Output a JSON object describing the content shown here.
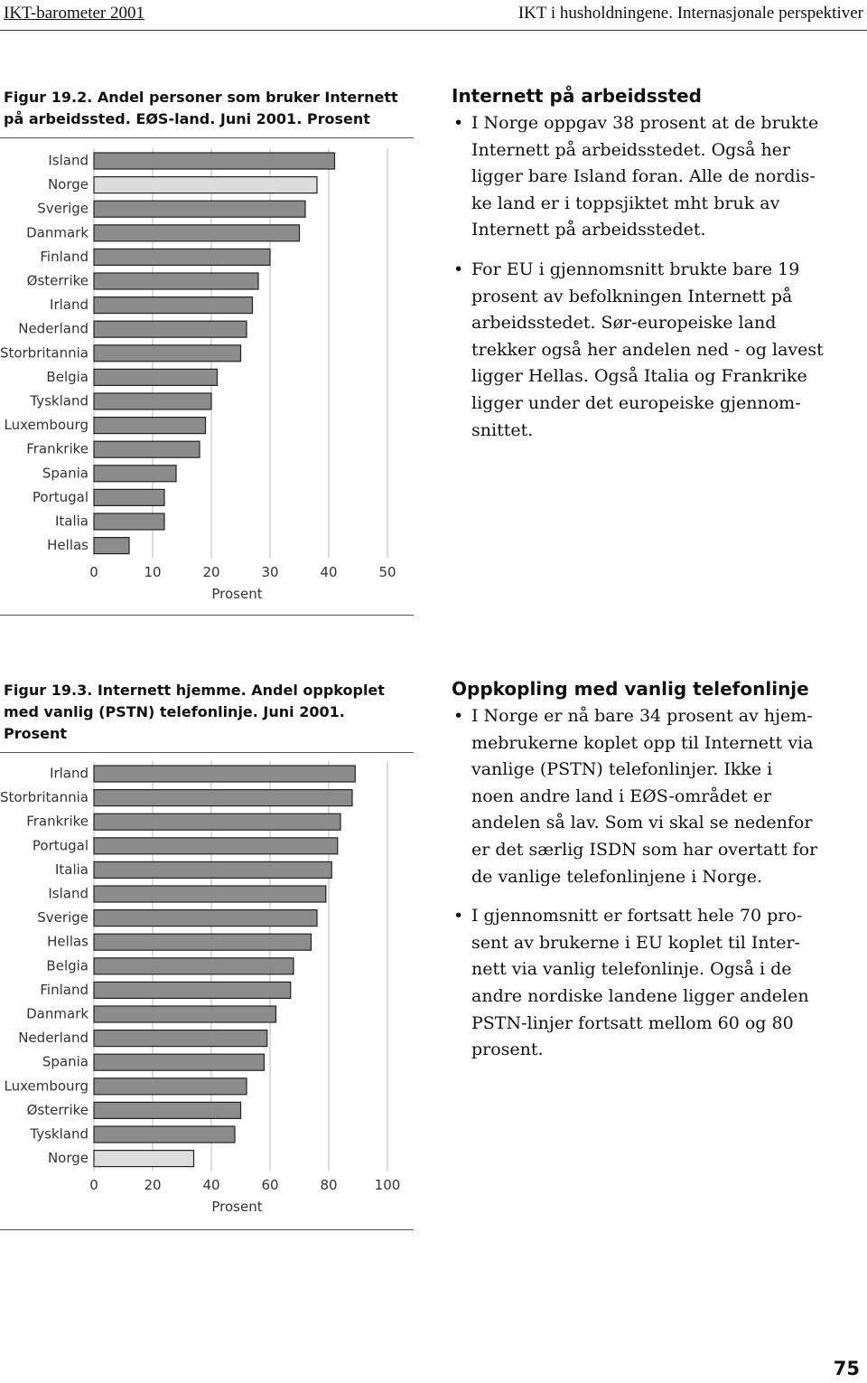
{
  "header": {
    "left": "IKT-barometer 2001",
    "right": "IKT i husholdningene. Internasjonale perspektiver"
  },
  "chart_data": [
    {
      "type": "bar",
      "title": "Figur 19.2. Andel personer som bruker Internett på arbeidssted. EØS-land. Juni 2001. Prosent",
      "categories": [
        "Island",
        "Norge",
        "Sverige",
        "Danmark",
        "Finland",
        "Østerrike",
        "Irland",
        "Nederland",
        "Storbritannia",
        "Belgia",
        "Tyskland",
        "Luxembourg",
        "Frankrike",
        "Spania",
        "Portugal",
        "Italia",
        "Hellas"
      ],
      "values": [
        41,
        38,
        36,
        35,
        30,
        28,
        27,
        26,
        25,
        21,
        20,
        19,
        18,
        14,
        12,
        12,
        6
      ],
      "colors": [
        "#8c8c8c",
        "#dcdcdc",
        "#8c8c8c",
        "#8c8c8c",
        "#8c8c8c",
        "#8c8c8c",
        "#8c8c8c",
        "#8c8c8c",
        "#8c8c8c",
        "#8c8c8c",
        "#8c8c8c",
        "#8c8c8c",
        "#8c8c8c",
        "#8c8c8c",
        "#8c8c8c",
        "#8c8c8c",
        "#8c8c8c"
      ],
      "x_label": "Prosent",
      "xlim": [
        0,
        50
      ],
      "xticks": [
        0,
        10,
        20,
        30,
        40,
        50
      ],
      "grid": true
    },
    {
      "type": "bar",
      "title": "Figur 19.3. Internett hjemme. Andel oppkoplet med vanlig (PSTN) telefonlinje. Juni 2001. Prosent",
      "categories": [
        "Irland",
        "Storbritannia",
        "Frankrike",
        "Portugal",
        "Italia",
        "Island",
        "Sverige",
        "Hellas",
        "Belgia",
        "Finland",
        "Danmark",
        "Nederland",
        "Spania",
        "Luxembourg",
        "Østerrike",
        "Tyskland",
        "Norge"
      ],
      "values": [
        89,
        88,
        84,
        83,
        81,
        79,
        76,
        74,
        68,
        67,
        62,
        59,
        58,
        52,
        50,
        48,
        34
      ],
      "colors": [
        "#8c8c8c",
        "#8c8c8c",
        "#8c8c8c",
        "#8c8c8c",
        "#8c8c8c",
        "#8c8c8c",
        "#8c8c8c",
        "#8c8c8c",
        "#8c8c8c",
        "#8c8c8c",
        "#8c8c8c",
        "#8c8c8c",
        "#8c8c8c",
        "#8c8c8c",
        "#8c8c8c",
        "#8c8c8c",
        "#dcdcdc"
      ],
      "x_label": "Prosent",
      "xlim": [
        0,
        100
      ],
      "xticks": [
        0,
        20,
        40,
        60,
        80,
        100
      ],
      "grid": true
    }
  ],
  "sections": [
    {
      "heading": "Internett på arbeidssted",
      "bullets": [
        [
          "I Norge oppgav 38 prosent at de brukte",
          "Internett på arbeidsstedet. Også her",
          "ligger bare Island foran. Alle de nordis-",
          "ke land er i toppsjiktet mht bruk av",
          "Internett på arbeidsstedet."
        ],
        [
          "For EU i gjennomsnitt brukte bare 19",
          "prosent av befolkningen Internett på",
          "arbeidsstedet. Sør-europeiske land",
          "trekker også her andelen ned - og lavest",
          "ligger Hellas. Også Italia og Frankrike",
          "ligger under det europeiske gjennom-",
          "snittet."
        ]
      ]
    },
    {
      "heading": "Oppkopling med vanlig telefonlinje",
      "bullets": [
        [
          "I Norge er nå bare 34 prosent av hjem-",
          "mebrukerne koplet opp til Internett via",
          "vanlige (PSTN) telefonlinjer. Ikke i",
          "noen andre land i EØS-området er",
          "andelen så lav. Som vi skal se nedenfor",
          "er det særlig ISDN som har overtatt for",
          "de vanlige telefonlinjene i Norge."
        ],
        [
          "I gjennomsnitt er fortsatt hele 70 pro-",
          "sent av brukerne i EU koplet til Inter-",
          "nett via vanlig telefonlinje. Også i de",
          "andre nordiske landene ligger andelen",
          "PSTN-linjer fortsatt mellom 60 og 80",
          "prosent."
        ]
      ]
    }
  ],
  "page_number": "75"
}
